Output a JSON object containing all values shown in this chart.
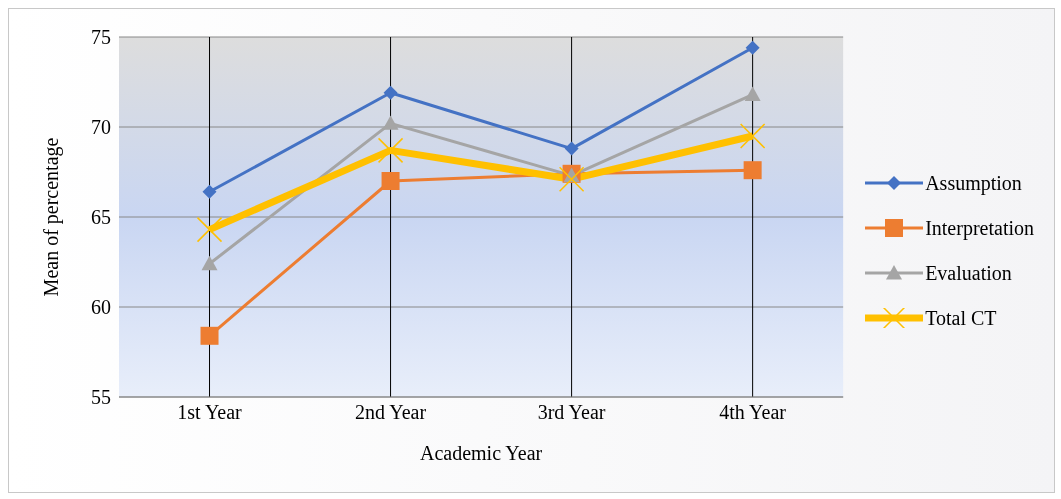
{
  "chart_data": {
    "type": "line",
    "xlabel": "Academic Year",
    "ylabel": "Mean of percentage",
    "categories": [
      "1st Year",
      "2nd Year",
      "3rd Year",
      "4th Year"
    ],
    "series": [
      {
        "name": "Assumption",
        "color": "#4472c4",
        "marker": "diamond",
        "values": [
          66.4,
          71.9,
          68.8,
          74.4
        ]
      },
      {
        "name": "Interpretation",
        "color": "#ed7d31",
        "marker": "square",
        "values": [
          58.4,
          67.0,
          67.4,
          67.6
        ]
      },
      {
        "name": "Evaluation",
        "color": "#a5a5a5",
        "marker": "triangle",
        "values": [
          62.4,
          70.2,
          67.3,
          71.8
        ]
      },
      {
        "name": "Total CT",
        "color": "#ffc000",
        "marker": "cross",
        "values": [
          64.3,
          68.7,
          67.1,
          69.5
        ]
      }
    ],
    "ylim": [
      55,
      75
    ],
    "yticks": [
      55,
      60,
      65,
      70,
      75
    ],
    "grid": true,
    "legend": "right",
    "line_style": "solid"
  }
}
